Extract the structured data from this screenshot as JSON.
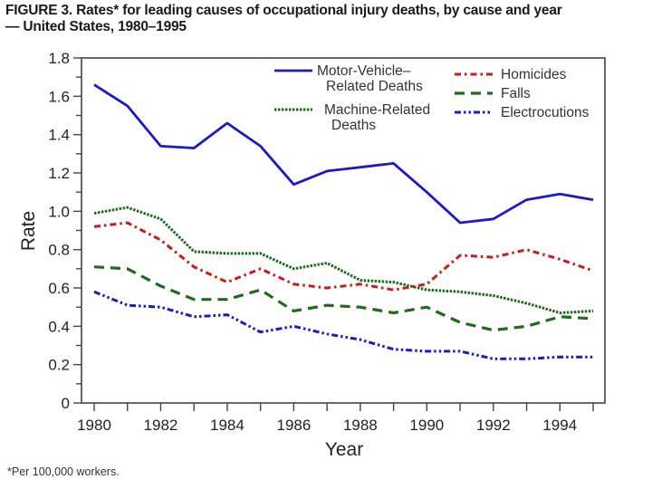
{
  "figure": {
    "title_line1": "FIGURE 3. Rates* for leading causes of occupational injury deaths, by cause and year",
    "title_line2": "— United States, 1980–1995",
    "footnote": "*Per 100,000 workers."
  },
  "chart_data": {
    "type": "line",
    "title": "Rates* for leading causes of occupational injury deaths, by cause and year — United States, 1980–1995",
    "xlabel": "Year",
    "ylabel": "Rate",
    "x": [
      1980,
      1981,
      1982,
      1983,
      1984,
      1985,
      1986,
      1987,
      1988,
      1989,
      1990,
      1991,
      1992,
      1993,
      1994,
      1995
    ],
    "xlim": [
      1979.6,
      1995.4
    ],
    "ylim": [
      0,
      1.8
    ],
    "x_ticks": [
      1980,
      1981,
      1982,
      1983,
      1984,
      1985,
      1986,
      1987,
      1988,
      1989,
      1990,
      1991,
      1992,
      1993,
      1994,
      1995
    ],
    "x_tick_labels": [
      "1980",
      "1982",
      "1984",
      "1986",
      "1988",
      "1990",
      "1992",
      "1994"
    ],
    "y_ticks": [
      0,
      0.1,
      0.2,
      0.3,
      0.4,
      0.5,
      0.6,
      0.7,
      0.8,
      0.9,
      1.0,
      1.1,
      1.2,
      1.3,
      1.4,
      1.5,
      1.6,
      1.7,
      1.8
    ],
    "y_tick_labels": [
      "0",
      "0.2",
      "0.4",
      "0.6",
      "0.8",
      "1.0",
      "1.2",
      "1.4",
      "1.6",
      "1.8"
    ],
    "grid": false,
    "legend_position": "top-right",
    "series": [
      {
        "name": "Motor-Vehicle–Related Deaths",
        "legend_lines": [
          "Motor-Vehicle–",
          "Related Deaths"
        ],
        "color": "#1a1acc",
        "style": "solid",
        "values": [
          1.66,
          1.55,
          1.34,
          1.33,
          1.46,
          1.34,
          1.14,
          1.21,
          1.23,
          1.25,
          1.1,
          0.94,
          0.96,
          1.06,
          1.09,
          1.06
        ]
      },
      {
        "name": "Machine-Related Deaths",
        "legend_lines": [
          "Machine-Related",
          "Deaths"
        ],
        "color": "#1e6b1e",
        "style": "dotted",
        "values": [
          0.99,
          1.02,
          0.96,
          0.79,
          0.78,
          0.78,
          0.7,
          0.73,
          0.64,
          0.63,
          0.59,
          0.58,
          0.56,
          0.52,
          0.47,
          0.48
        ]
      },
      {
        "name": "Homicides",
        "legend_lines": [
          "Homicides"
        ],
        "color": "#cc1a1a",
        "style": "dashdot",
        "values": [
          0.92,
          0.94,
          0.85,
          0.71,
          0.63,
          0.7,
          0.62,
          0.6,
          0.62,
          0.59,
          0.62,
          0.77,
          0.76,
          0.8,
          0.75,
          0.69
        ]
      },
      {
        "name": "Falls",
        "legend_lines": [
          "Falls"
        ],
        "color": "#1e6b1e",
        "style": "dashed",
        "values": [
          0.71,
          0.7,
          0.61,
          0.54,
          0.54,
          0.59,
          0.48,
          0.51,
          0.5,
          0.47,
          0.5,
          0.42,
          0.38,
          0.4,
          0.45,
          0.44
        ]
      },
      {
        "name": "Electrocutions",
        "legend_lines": [
          "Electrocutions"
        ],
        "color": "#1a1acc",
        "style": "dashdotdot",
        "values": [
          0.58,
          0.51,
          0.5,
          0.45,
          0.46,
          0.37,
          0.4,
          0.36,
          0.33,
          0.28,
          0.27,
          0.27,
          0.23,
          0.23,
          0.24,
          0.24
        ]
      }
    ]
  }
}
